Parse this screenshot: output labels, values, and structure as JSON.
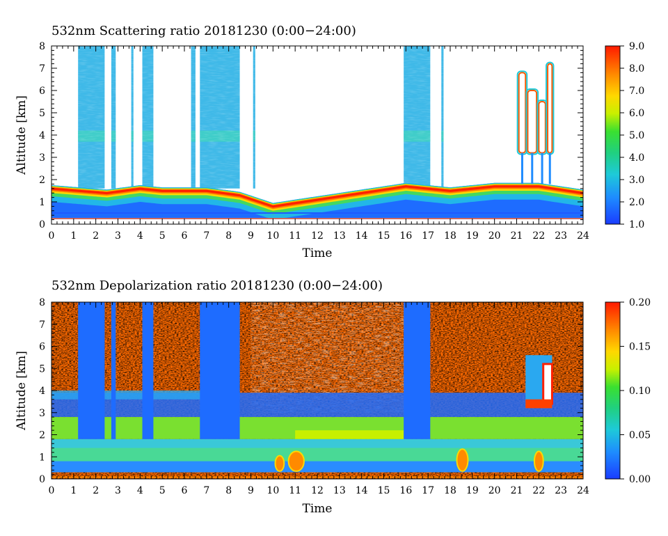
{
  "chart_data": [
    {
      "type": "heatmap",
      "title": "532nm Scattering ratio  20181230 (0:00−24:00)",
      "xlabel": "Time",
      "ylabel": "Altitude [km]",
      "xlim": [
        0,
        24
      ],
      "ylim": [
        0,
        8
      ],
      "x_ticks": [
        "0",
        "1",
        "2",
        "3",
        "4",
        "5",
        "6",
        "7",
        "8",
        "9",
        "10",
        "11",
        "12",
        "13",
        "14",
        "15",
        "16",
        "17",
        "18",
        "19",
        "20",
        "21",
        "22",
        "23",
        "24"
      ],
      "y_ticks": [
        "0",
        "1",
        "2",
        "3",
        "4",
        "5",
        "6",
        "7",
        "8"
      ],
      "colorbar": {
        "range": [
          1.0,
          9.0
        ],
        "ticks": [
          "1.0",
          "2.0",
          "3.0",
          "4.0",
          "5.0",
          "6.0",
          "7.0",
          "8.0",
          "9.0"
        ]
      },
      "features": {
        "boundary_layer_top_km": [
          [
            0,
            1.7
          ],
          [
            2.5,
            1.5
          ],
          [
            4,
            1.7
          ],
          [
            5,
            1.6
          ],
          [
            7,
            1.6
          ],
          [
            8.5,
            1.4
          ],
          [
            10,
            0.9
          ],
          [
            12,
            1.2
          ],
          [
            14,
            1.5
          ],
          [
            16,
            1.8
          ],
          [
            18,
            1.6
          ],
          [
            20,
            1.8
          ],
          [
            22,
            1.8
          ],
          [
            24,
            1.5
          ]
        ],
        "high_cloud_columns_h": [
          [
            1.2,
            2.4
          ],
          [
            2.7,
            2.9
          ],
          [
            3.6,
            3.7
          ],
          [
            4.1,
            4.6
          ],
          [
            6.3,
            6.5
          ],
          [
            6.7,
            8.5
          ],
          [
            9.1,
            9.2
          ],
          [
            15.9,
            17.1
          ],
          [
            17.6,
            17.7
          ]
        ],
        "cirrus_cells_h": [
          [
            21.1,
            21.4
          ],
          [
            21.5,
            21.9
          ],
          [
            22.0,
            22.3
          ],
          [
            22.4,
            22.6
          ]
        ]
      }
    },
    {
      "type": "heatmap",
      "title": "532nm Depolarization ratio  20181230 (0:00−24:00)",
      "xlabel": "Time",
      "ylabel": "Altitude [km]",
      "xlim": [
        0,
        24
      ],
      "ylim": [
        0,
        8
      ],
      "x_ticks": [
        "0",
        "1",
        "2",
        "3",
        "4",
        "5",
        "6",
        "7",
        "8",
        "9",
        "10",
        "11",
        "12",
        "13",
        "14",
        "15",
        "16",
        "17",
        "18",
        "19",
        "20",
        "21",
        "22",
        "23",
        "24"
      ],
      "y_ticks": [
        "0",
        "1",
        "2",
        "3",
        "4",
        "5",
        "6",
        "7",
        "8"
      ],
      "colorbar": {
        "range": [
          0.0,
          0.2
        ],
        "ticks": [
          "0.00",
          "0.05",
          "0.10",
          "0.15",
          "0.20"
        ]
      },
      "features": {
        "low_depol_layer_km": [
          0.3,
          1.8
        ],
        "aerosol_layer_km": [
          1.8,
          2.8
        ],
        "cloud_columns_h": [
          [
            1.2,
            2.4
          ],
          [
            2.7,
            2.9
          ],
          [
            4.1,
            4.6
          ],
          [
            6.7,
            8.5
          ],
          [
            15.9,
            17.1
          ]
        ],
        "high_depol_cirrus_h": [
          21.4,
          22.6
        ]
      }
    }
  ]
}
